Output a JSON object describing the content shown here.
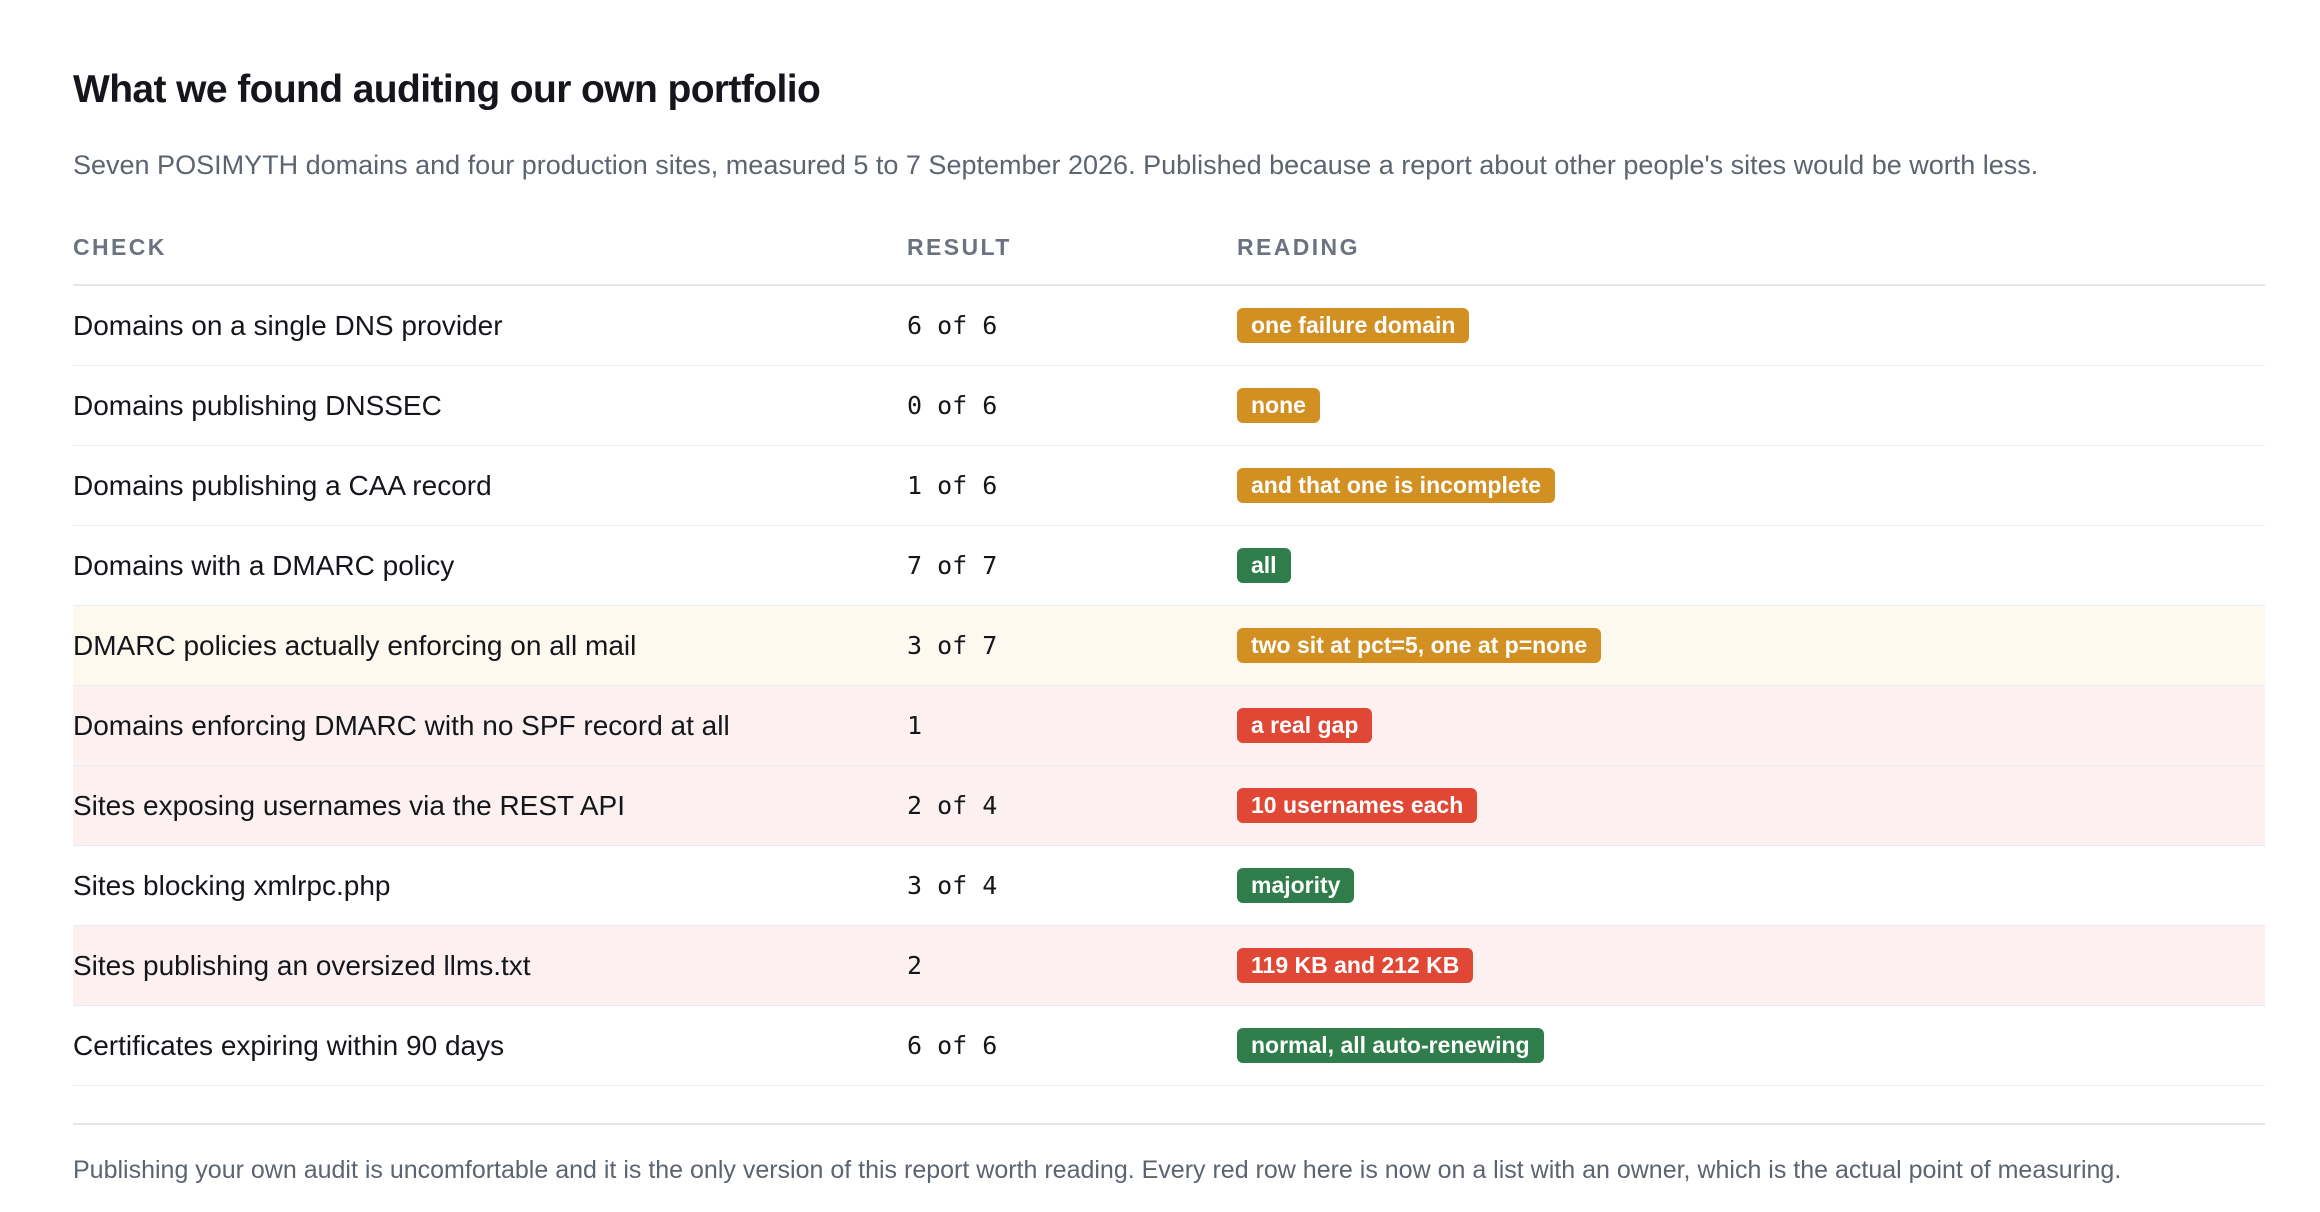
{
  "header": {
    "title": "What we found auditing our own portfolio",
    "subtitle": "Seven POSIMYTH domains and four production sites, measured 5 to 7 September 2026. Published because a report about other people's sites would be worth less."
  },
  "table": {
    "columns": {
      "check": "CHECK",
      "result": "RESULT",
      "reading": "READING"
    },
    "rows": [
      {
        "check": "Domains on a single DNS provider",
        "result": "6 of 6",
        "reading": "one failure domain",
        "reading_color": "#d39022",
        "row_tint": "none"
      },
      {
        "check": "Domains publishing DNSSEC",
        "result": "0 of 6",
        "reading": "none",
        "reading_color": "#d39022",
        "row_tint": "none"
      },
      {
        "check": "Domains publishing a CAA record",
        "result": "1 of 6",
        "reading": "and that one is incomplete",
        "reading_color": "#d39022",
        "row_tint": "none"
      },
      {
        "check": "Domains with a DMARC policy",
        "result": "7 of 7",
        "reading": "all",
        "reading_color": "#2e7d4a",
        "row_tint": "none"
      },
      {
        "check": "DMARC policies actually enforcing on all mail",
        "result": "3 of 7",
        "reading": "two sit at pct=5, one at p=none",
        "reading_color": "#d39022",
        "row_tint": "#fdf9ef"
      },
      {
        "check": "Domains enforcing DMARC with no SPF record at all",
        "result": "1",
        "reading": "a real gap",
        "reading_color": "#e04735",
        "row_tint": "#fcf1f0"
      },
      {
        "check": "Sites exposing usernames via the REST API",
        "result": "2 of 4",
        "reading": "10 usernames each",
        "reading_color": "#e04735",
        "row_tint": "#fcf1f0"
      },
      {
        "check": "Sites blocking xmlrpc.php",
        "result": "3 of 4",
        "reading": "majority",
        "reading_color": "#2e7d4a",
        "row_tint": "none"
      },
      {
        "check": "Sites publishing an oversized llms.txt",
        "result": "2",
        "reading": "119 KB and 212 KB",
        "reading_color": "#e04735",
        "row_tint": "#fcf1f0"
      },
      {
        "check": "Certificates expiring within 90 days",
        "result": "6 of 6",
        "reading": "normal, all auto-renewing",
        "reading_color": "#2e7d4a",
        "row_tint": "none"
      }
    ]
  },
  "footer": {
    "note": "Publishing your own audit is uncomfortable and it is the only version of this report worth reading. Every red row here is now on a list with an owner, which is the actual point of measuring."
  }
}
